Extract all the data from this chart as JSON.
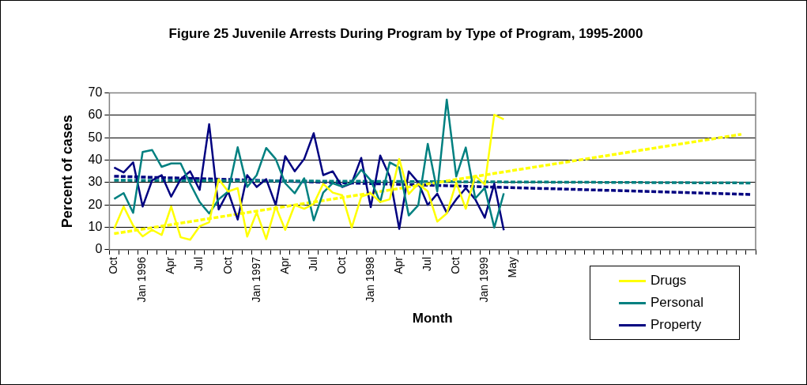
{
  "chart_data": {
    "type": "line",
    "title": "Figure 25 Juvenile Arrests During Program by Type of Program, 1995-2000",
    "xlabel": "Month",
    "ylabel": "Percent of cases",
    "categories": [
      "Oct",
      null,
      null,
      "Jan 1996",
      null,
      null,
      "Apr",
      null,
      null,
      "Jul",
      null,
      null,
      "Oct",
      null,
      null,
      "Jan 1997",
      null,
      null,
      "Apr",
      null,
      null,
      "Jul",
      null,
      null,
      "Oct",
      null,
      null,
      "Jan 1998",
      null,
      null,
      "Apr",
      null,
      null,
      "Jul",
      null,
      null,
      "Oct",
      null,
      null,
      "Jan 1999",
      null,
      null,
      "May",
      null,
      null,
      null,
      null,
      null,
      null,
      null,
      null,
      null,
      null,
      null,
      null,
      null,
      null,
      null,
      null,
      null,
      null,
      null,
      null,
      null,
      null,
      null,
      null,
      null
    ],
    "series": [
      {
        "name": "Drugs",
        "color": "#ffff00",
        "values": [
          9.3,
          19.3,
          10.8,
          6,
          8.9,
          6.6,
          19.3,
          5.6,
          4.5,
          10.5,
          12.3,
          31.5,
          26,
          27.5,
          5.9,
          16.7,
          4.8,
          19.3,
          8.9,
          20,
          18.3,
          20.5,
          29.4,
          25.5,
          24.3,
          9.9,
          23.7,
          25.2,
          21.3,
          22.5,
          40.5,
          24.9,
          29.4,
          26.1,
          12.6,
          16.2,
          30,
          18.3,
          33,
          29.1,
          60.2,
          58.2,
          null,
          null,
          null,
          null,
          null,
          null,
          null,
          null,
          null,
          null,
          null,
          null,
          null,
          null,
          null,
          null,
          null,
          null,
          null,
          null,
          null,
          null,
          null,
          null,
          null,
          null
        ]
      },
      {
        "name": "Personal",
        "color": "#008080",
        "values": [
          22.7,
          25.3,
          16.5,
          43.6,
          44.5,
          37,
          38.5,
          38.5,
          29.5,
          21.3,
          16.2,
          22.5,
          26,
          45.7,
          28,
          33.3,
          45.4,
          40.5,
          29.7,
          25.2,
          31.9,
          13.1,
          25.5,
          29.7,
          28.2,
          30,
          35.7,
          31,
          21.3,
          39,
          36.7,
          15.3,
          19.9,
          47.2,
          26,
          67,
          32.7,
          45.6,
          22.9,
          27.6,
          9.9,
          25.2,
          null,
          null,
          null,
          null,
          null,
          null,
          null,
          null,
          null,
          null,
          null,
          null,
          null,
          null,
          null,
          null,
          null,
          null,
          null,
          null,
          null,
          null,
          null,
          null,
          null,
          null
        ]
      },
      {
        "name": "Property",
        "color": "#000080",
        "values": [
          36.7,
          34.5,
          39,
          19.3,
          31,
          33.3,
          23.7,
          31.5,
          35,
          26.7,
          56,
          18,
          26,
          13.5,
          33.3,
          28,
          31.5,
          20,
          41.8,
          35,
          40.5,
          52,
          33.3,
          35,
          28,
          29.7,
          41,
          19,
          42,
          32.7,
          9.3,
          35,
          30,
          20,
          25,
          16.5,
          22.5,
          27.5,
          22.5,
          14.3,
          29.5,
          8.7,
          null,
          null,
          null,
          null,
          null,
          null,
          null,
          null,
          null,
          null,
          null,
          null,
          null,
          null,
          null,
          null,
          null,
          null,
          null,
          null,
          null,
          null,
          null,
          null,
          null,
          null
        ]
      },
      {
        "type": "line",
        "line_style": "dashed",
        "color": "#ffff00",
        "values": [
          7.2,
          null,
          null,
          null,
          null,
          null,
          null,
          null,
          null,
          null,
          null,
          null,
          null,
          null,
          null,
          null,
          null,
          null,
          null,
          null,
          null,
          null,
          null,
          null,
          null,
          null,
          null,
          null,
          null,
          null,
          null,
          null,
          null,
          null,
          null,
          null,
          null,
          null,
          null,
          null,
          null,
          null,
          null,
          null,
          null,
          null,
          null,
          null,
          null,
          null,
          null,
          null,
          null,
          null,
          null,
          null,
          null,
          null,
          null,
          null,
          null,
          null,
          null,
          null,
          null,
          null,
          51.5,
          null
        ]
      },
      {
        "type": "line",
        "line_style": "dashed",
        "color": "#008080",
        "values": [
          31,
          null,
          null,
          null,
          null,
          null,
          null,
          null,
          null,
          null,
          null,
          null,
          null,
          null,
          null,
          null,
          null,
          null,
          null,
          null,
          null,
          null,
          null,
          null,
          null,
          null,
          null,
          null,
          null,
          null,
          null,
          null,
          null,
          null,
          null,
          null,
          null,
          null,
          null,
          null,
          null,
          null,
          null,
          null,
          null,
          null,
          null,
          null,
          null,
          null,
          null,
          null,
          null,
          null,
          null,
          null,
          null,
          null,
          null,
          null,
          null,
          null,
          null,
          null,
          null,
          null,
          null,
          29.8
        ]
      },
      {
        "type": "line",
        "line_style": "dashed",
        "color": "#000080",
        "values": [
          32.8,
          null,
          null,
          null,
          null,
          null,
          null,
          null,
          null,
          null,
          null,
          null,
          null,
          null,
          null,
          null,
          null,
          null,
          null,
          null,
          null,
          null,
          null,
          null,
          null,
          null,
          null,
          null,
          null,
          null,
          null,
          null,
          null,
          null,
          null,
          null,
          null,
          null,
          null,
          null,
          null,
          null,
          null,
          null,
          null,
          null,
          null,
          null,
          null,
          null,
          null,
          null,
          null,
          null,
          null,
          null,
          null,
          null,
          null,
          null,
          null,
          null,
          null,
          null,
          null,
          null,
          null,
          24.7
        ]
      }
    ],
    "ylim": [
      0,
      70
    ],
    "yticks": [
      0,
      10,
      20,
      30,
      40,
      50,
      60,
      70
    ],
    "grid": "y",
    "legend": "bottom right",
    "marker": "none",
    "line_style": "solid"
  }
}
